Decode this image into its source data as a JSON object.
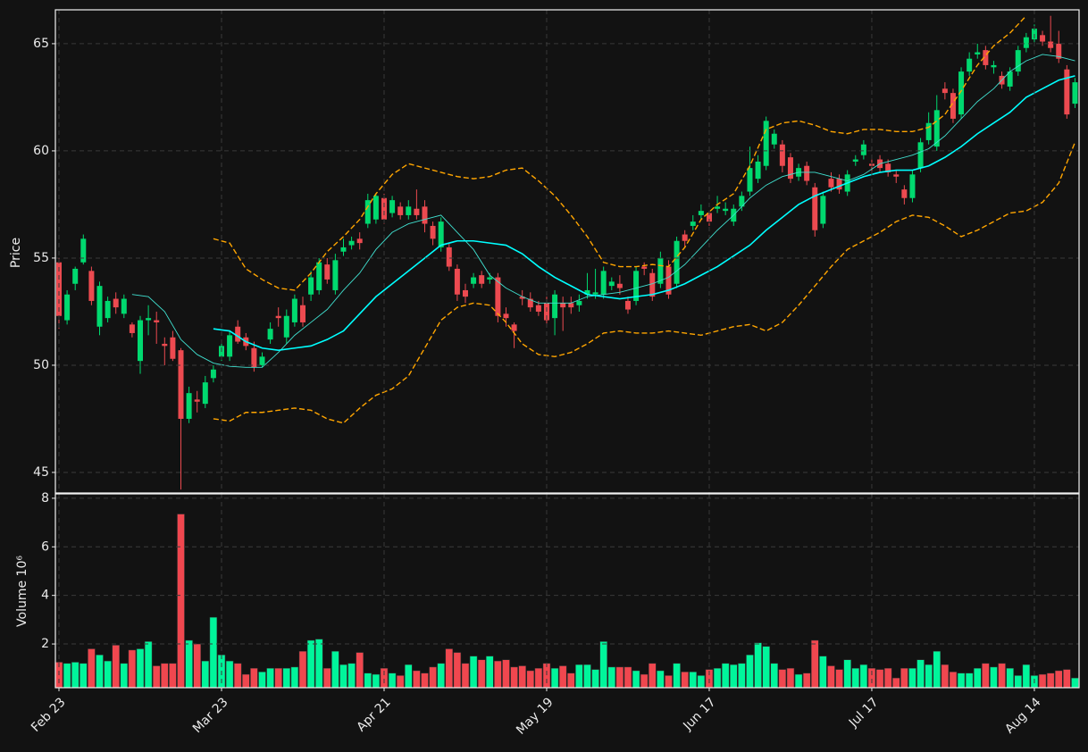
{
  "chart_data": [
    {
      "type": "candlestick",
      "ylabel": "Price",
      "up_color": "#00d96f",
      "down_color": "#ec4a50",
      "open": [
        54.8,
        52.1,
        53.8,
        54.8,
        54.4,
        51.8,
        52.2,
        53.1,
        52.4,
        51.9,
        50.2,
        52.1,
        52.1,
        51.0,
        51.3,
        50.7,
        47.5,
        48.4,
        48.2,
        49.4,
        50.4,
        50.4,
        51.8,
        51.3,
        50.8,
        50.0,
        51.2,
        52.3,
        51.3,
        52.0,
        52.8,
        53.3,
        53.5,
        54.7,
        53.5,
        55.3,
        55.6,
        55.9,
        56.6,
        56.8,
        57.8,
        57.1,
        57.4,
        57.0,
        57.3,
        57.4,
        56.5,
        55.5,
        55.5,
        54.5,
        53.5,
        53.8,
        54.2,
        54.0,
        54.1,
        52.4,
        51.9,
        53.2,
        53.1,
        52.8,
        52.9,
        52.2,
        52.9,
        52.9,
        52.8,
        53.3,
        53.3,
        53.3,
        53.7,
        53.8,
        53.0,
        53.0,
        54.6,
        54.3,
        53.8,
        54.6,
        53.8,
        56.1,
        56.5,
        57.0,
        57.1,
        57.3,
        57.2,
        56.7,
        57.4,
        58.1,
        58.7,
        59.3,
        60.3,
        60.3,
        59.7,
        58.8,
        59.3,
        58.3,
        56.6,
        58.7,
        58.7,
        58.1,
        59.5,
        59.8,
        59.4,
        59.6,
        59.4,
        58.9,
        58.2,
        57.8,
        59.2,
        60.5,
        60.2,
        62.9,
        62.7,
        61.7,
        63.7,
        64.5,
        64.7,
        63.9,
        63.5,
        63.0,
        63.7,
        64.8,
        65.2,
        65.4,
        65.1,
        65.0,
        63.8,
        62.2
      ],
      "high": [
        55.0,
        53.5,
        54.6,
        56.1,
        54.6,
        53.9,
        53.2,
        53.4,
        53.3,
        52.0,
        52.3,
        52.8,
        52.5,
        51.3,
        51.6,
        50.8,
        49.0,
        48.8,
        49.5,
        50.0,
        51.2,
        51.6,
        52.1,
        51.5,
        51.1,
        50.6,
        52.0,
        52.7,
        52.6,
        53.3,
        53.2,
        54.4,
        55.0,
        55.0,
        55.2,
        55.9,
        56.0,
        56.2,
        58.0,
        58.0,
        58.0,
        57.9,
        57.6,
        57.7,
        58.2,
        57.7,
        56.7,
        56.9,
        55.7,
        54.7,
        53.8,
        54.3,
        54.4,
        54.3,
        54.3,
        52.7,
        52.0,
        53.5,
        53.4,
        53.0,
        53.2,
        53.5,
        53.2,
        53.2,
        53.3,
        54.3,
        54.5,
        54.6,
        54.1,
        54.2,
        53.2,
        54.6,
        54.8,
        54.5,
        55.3,
        54.9,
        56.0,
        56.3,
        57.0,
        57.5,
        57.2,
        57.9,
        57.6,
        57.5,
        58.1,
        60.2,
        59.8,
        61.6,
        61.0,
        60.5,
        59.9,
        59.4,
        59.5,
        58.5,
        58.1,
        59.0,
        58.9,
        59.1,
        59.8,
        60.5,
        59.6,
        59.8,
        59.6,
        59.1,
        58.4,
        59.1,
        60.6,
        61.8,
        62.6,
        63.2,
        62.9,
        63.9,
        64.6,
        65.0,
        64.9,
        64.2,
        63.7,
        63.9,
        64.9,
        65.5,
        65.9,
        65.6,
        66.3,
        65.6,
        64.0,
        63.4
      ],
      "low": [
        51.7,
        51.9,
        53.5,
        54.7,
        52.8,
        51.4,
        52.0,
        52.4,
        52.2,
        51.3,
        49.6,
        51.4,
        51.0,
        50.0,
        50.2,
        44.2,
        47.3,
        47.8,
        48.0,
        49.2,
        50.2,
        50.2,
        51.0,
        50.7,
        49.7,
        49.9,
        51.0,
        51.8,
        51.0,
        51.8,
        51.8,
        53.0,
        53.3,
        53.8,
        53.3,
        55.1,
        55.4,
        55.4,
        56.4,
        56.6,
        56.6,
        56.9,
        56.8,
        56.8,
        56.8,
        56.2,
        55.6,
        55.3,
        54.4,
        53.0,
        52.9,
        53.6,
        53.6,
        53.8,
        52.0,
        51.8,
        50.8,
        52.8,
        52.5,
        52.3,
        51.9,
        51.4,
        51.6,
        52.4,
        52.5,
        53.1,
        53.1,
        53.1,
        53.5,
        53.3,
        52.4,
        52.8,
        54.2,
        53.0,
        53.6,
        53.1,
        53.6,
        55.5,
        56.3,
        56.8,
        56.5,
        57.1,
        57.0,
        56.5,
        57.2,
        57.9,
        58.5,
        59.1,
        60.1,
        59.0,
        58.5,
        58.6,
        58.4,
        56.0,
        56.4,
        58.1,
        58.0,
        57.9,
        59.3,
        59.6,
        59.0,
        59.0,
        58.8,
        58.5,
        57.5,
        57.6,
        59.0,
        60.3,
        60.0,
        62.4,
        61.3,
        61.5,
        63.5,
        64.3,
        63.8,
        63.6,
        62.9,
        62.8,
        63.5,
        64.6,
        65.0,
        64.9,
        64.6,
        64.1,
        61.5,
        62.0
      ],
      "close": [
        52.3,
        53.3,
        54.5,
        55.9,
        53.0,
        53.7,
        53.0,
        52.7,
        53.1,
        51.5,
        52.1,
        52.2,
        52.0,
        50.9,
        50.3,
        47.5,
        48.7,
        48.3,
        49.2,
        49.8,
        50.9,
        51.4,
        51.1,
        50.9,
        49.9,
        50.4,
        51.7,
        52.2,
        52.3,
        53.1,
        52.0,
        54.1,
        54.8,
        54.0,
        54.9,
        55.5,
        55.8,
        55.7,
        57.7,
        57.9,
        56.8,
        57.7,
        57.0,
        57.4,
        57.0,
        56.6,
        55.9,
        56.7,
        54.6,
        53.3,
        53.2,
        54.1,
        53.8,
        54.1,
        52.3,
        52.2,
        51.6,
        53.1,
        52.7,
        52.5,
        52.1,
        53.3,
        52.7,
        52.7,
        53.0,
        53.5,
        53.4,
        54.4,
        53.9,
        53.6,
        52.6,
        54.4,
        54.5,
        53.2,
        55.0,
        53.3,
        55.8,
        55.8,
        56.7,
        57.2,
        56.7,
        57.4,
        57.3,
        57.3,
        57.9,
        59.2,
        59.5,
        61.4,
        60.8,
        59.3,
        58.7,
        59.2,
        58.6,
        56.3,
        57.9,
        58.3,
        58.2,
        58.9,
        59.6,
        60.3,
        59.3,
        59.2,
        59.0,
        58.8,
        57.8,
        58.9,
        60.4,
        61.3,
        61.9,
        62.7,
        61.5,
        63.7,
        64.3,
        64.6,
        64.0,
        64.0,
        63.1,
        63.7,
        64.7,
        65.3,
        65.7,
        65.1,
        64.8,
        64.3,
        61.7,
        63.2
      ],
      "lines": [
        {
          "color": "#40e0d0",
          "width": 0.9,
          "dash": null,
          "x": [
            9,
            11,
            13,
            15,
            17,
            19,
            21,
            23,
            25,
            27,
            29,
            31,
            33,
            35,
            37,
            39,
            41,
            43,
            45,
            47,
            49,
            51,
            53,
            55,
            57,
            59,
            61,
            63,
            65,
            67,
            69,
            71,
            73,
            75,
            77,
            79,
            81,
            83,
            85,
            87,
            89,
            91,
            93,
            95,
            97,
            99,
            101,
            103,
            105,
            107,
            109,
            111,
            113,
            115,
            117,
            119,
            121,
            123,
            125
          ],
          "values": [
            53.3,
            53.2,
            52.5,
            51.2,
            50.5,
            50.1,
            49.95,
            49.9,
            49.9,
            50.6,
            51.4,
            52.0,
            52.6,
            53.5,
            54.3,
            55.4,
            56.2,
            56.6,
            56.8,
            57.0,
            56.2,
            55.4,
            54.2,
            53.6,
            53.2,
            52.9,
            52.9,
            52.9,
            53.2,
            53.3,
            53.4,
            53.6,
            53.8,
            54.1,
            54.7,
            55.5,
            56.3,
            57.0,
            57.8,
            58.4,
            58.8,
            59.0,
            59.0,
            58.8,
            58.6,
            58.9,
            59.4,
            59.6,
            59.8,
            60.1,
            60.7,
            61.5,
            62.3,
            62.9,
            63.7,
            64.2,
            64.5,
            64.4,
            64.2
          ]
        },
        {
          "color": "#00ffff",
          "width": 1.6,
          "dash": null,
          "x": [
            19,
            21,
            23,
            25,
            27,
            29,
            31,
            33,
            35,
            37,
            39,
            41,
            43,
            45,
            47,
            49,
            51,
            53,
            55,
            57,
            59,
            61,
            63,
            65,
            67,
            69,
            71,
            73,
            75,
            77,
            79,
            81,
            83,
            85,
            87,
            89,
            91,
            93,
            95,
            97,
            99,
            101,
            103,
            105,
            107,
            109,
            111,
            113,
            115,
            117,
            119,
            121,
            123,
            125
          ],
          "values": [
            51.7,
            51.6,
            51.1,
            50.8,
            50.7,
            50.8,
            50.9,
            51.2,
            51.6,
            52.4,
            53.2,
            53.8,
            54.4,
            55.0,
            55.6,
            55.8,
            55.8,
            55.7,
            55.6,
            55.2,
            54.6,
            54.1,
            53.7,
            53.3,
            53.2,
            53.1,
            53.2,
            53.3,
            53.5,
            53.8,
            54.2,
            54.6,
            55.1,
            55.6,
            56.3,
            56.9,
            57.5,
            57.9,
            58.2,
            58.5,
            58.8,
            59.0,
            59.1,
            59.1,
            59.3,
            59.7,
            60.2,
            60.8,
            61.3,
            61.8,
            62.5,
            62.9,
            63.3,
            63.5
          ]
        },
        {
          "color": "#ffa500",
          "width": 1.4,
          "dash": "6,3",
          "x": [
            19,
            21,
            23,
            25,
            27,
            29,
            31,
            33,
            35,
            37,
            39,
            41,
            43,
            45,
            47,
            49,
            51,
            53,
            55,
            57,
            59,
            61,
            63,
            65,
            67,
            69,
            71,
            73,
            75,
            77,
            79,
            81,
            83,
            85,
            87,
            89,
            91,
            93,
            95,
            97,
            99,
            101,
            103,
            105,
            107,
            109,
            111,
            113,
            115,
            117,
            119
          ],
          "values": [
            55.9,
            55.7,
            54.5,
            54.0,
            53.6,
            53.5,
            54.3,
            55.3,
            56.0,
            56.8,
            58.0,
            58.9,
            59.4,
            59.2,
            59.0,
            58.8,
            58.7,
            58.8,
            59.1,
            59.2,
            58.6,
            57.9,
            57.0,
            56.0,
            54.8,
            54.6,
            54.6,
            54.7,
            54.6,
            55.5,
            56.8,
            57.5,
            58.0,
            59.3,
            61.0,
            61.3,
            61.4,
            61.2,
            60.9,
            60.8,
            61.0,
            61.0,
            60.9,
            60.9,
            61.1,
            61.7,
            62.8,
            64.0,
            64.9,
            65.5,
            66.3
          ]
        },
        {
          "color": "#ffa500",
          "width": 1.4,
          "dash": "6,3",
          "x": [
            19,
            21,
            23,
            25,
            27,
            29,
            31,
            33,
            35,
            37,
            39,
            41,
            43,
            45,
            47,
            49,
            51,
            53,
            55,
            57,
            59,
            61,
            63,
            65,
            67,
            69,
            71,
            73,
            75,
            77,
            79,
            81,
            83,
            85,
            87,
            89,
            91,
            93,
            95,
            97,
            99,
            101,
            103,
            105,
            107,
            109,
            111,
            113,
            115,
            117,
            119,
            121,
            123,
            125
          ],
          "values": [
            47.5,
            47.4,
            47.8,
            47.8,
            47.9,
            48.0,
            47.9,
            47.5,
            47.3,
            48.0,
            48.6,
            48.9,
            49.5,
            50.8,
            52.1,
            52.7,
            52.9,
            52.8,
            52.0,
            51.0,
            50.5,
            50.4,
            50.6,
            51.0,
            51.5,
            51.6,
            51.5,
            51.5,
            51.6,
            51.5,
            51.4,
            51.6,
            51.8,
            51.9,
            51.6,
            52.0,
            52.8,
            53.7,
            54.6,
            55.4,
            55.8,
            56.2,
            56.7,
            57.0,
            56.9,
            56.5,
            56.0,
            56.3,
            56.7,
            57.1,
            57.2,
            57.6,
            58.5,
            60.4
          ]
        }
      ],
      "xlim": [
        -0.44,
        125.5
      ],
      "xticks": [
        0,
        20,
        40,
        60,
        80,
        100,
        120
      ],
      "ylim": [
        44.04,
        66.58
      ],
      "yticks": [
        45,
        50,
        55,
        60,
        65
      ],
      "grid": true
    },
    {
      "type": "bar",
      "ylabel": "Volume  10⁶",
      "up_color": "#00f59b",
      "down_color": "#f0474f",
      "values": [
        1.25,
        1.2,
        1.25,
        1.2,
        1.8,
        1.55,
        1.3,
        1.95,
        1.2,
        1.75,
        1.8,
        2.1,
        1.1,
        1.2,
        1.2,
        7.35,
        2.15,
        2.0,
        1.3,
        3.1,
        1.55,
        1.3,
        1.2,
        0.75,
        1.0,
        0.85,
        1.0,
        1.0,
        1.0,
        1.05,
        1.7,
        2.15,
        2.2,
        1.0,
        1.7,
        1.15,
        1.2,
        1.65,
        0.8,
        0.75,
        1.0,
        0.8,
        0.7,
        1.15,
        0.9,
        0.8,
        1.05,
        1.2,
        1.8,
        1.65,
        1.2,
        1.5,
        1.35,
        1.5,
        1.3,
        1.35,
        1.05,
        1.1,
        0.9,
        1.0,
        1.2,
        1.0,
        1.1,
        0.8,
        1.15,
        1.15,
        0.95,
        2.1,
        1.05,
        1.05,
        1.05,
        0.9,
        0.75,
        1.2,
        0.9,
        0.7,
        1.2,
        0.85,
        0.85,
        0.7,
        0.95,
        1.0,
        1.2,
        1.15,
        1.2,
        1.55,
        2.05,
        1.9,
        1.2,
        0.95,
        1.0,
        0.75,
        0.8,
        2.15,
        1.5,
        1.1,
        0.95,
        1.35,
        1.0,
        1.15,
        1.0,
        0.95,
        1.0,
        0.6,
        1.0,
        1.0,
        1.35,
        1.15,
        1.7,
        1.15,
        0.85,
        0.8,
        0.8,
        1.0,
        1.2,
        1.05,
        1.2,
        1.0,
        0.7,
        1.15,
        0.7,
        0.75,
        0.8,
        0.9,
        0.95,
        0.6
      ],
      "xlim": [
        -0.44,
        125.5
      ],
      "xticks": [
        {
          "value": 0,
          "label": "Feb 23"
        },
        {
          "value": 20,
          "label": "Mar 23"
        },
        {
          "value": 40,
          "label": "Apr 21"
        },
        {
          "value": 60,
          "label": "May 19"
        },
        {
          "value": 80,
          "label": "Jun 17"
        },
        {
          "value": 100,
          "label": "Jul 17"
        },
        {
          "value": 120,
          "label": "Aug 14"
        }
      ],
      "ylim": [
        0.2,
        8.18
      ],
      "yticks": [
        2,
        4,
        6,
        8
      ],
      "grid": true
    }
  ]
}
